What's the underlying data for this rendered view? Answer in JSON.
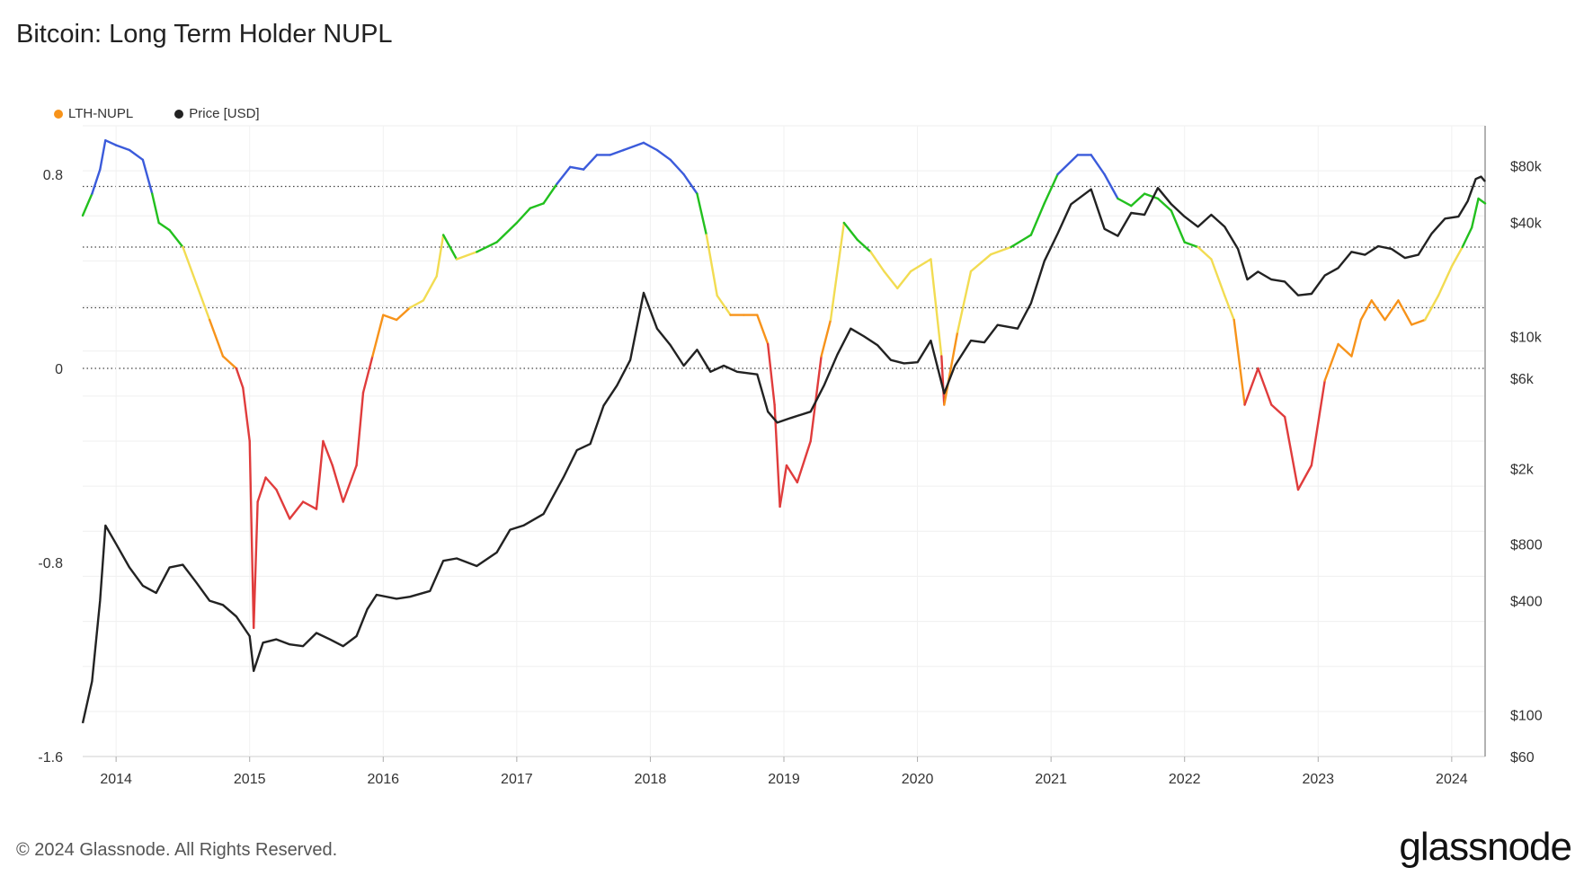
{
  "title": "Bitcoin: Long Term Holder NUPL",
  "footer": "© 2024 Glassnode. All Rights Reserved.",
  "logo_text": "glassnode",
  "legend": [
    {
      "label": "LTH-NUPL",
      "color": "#f7931a"
    },
    {
      "label": "Price [USD]",
      "color": "#222222"
    }
  ],
  "chart_data": {
    "type": "line",
    "x_ticks": [
      "2014",
      "2015",
      "2016",
      "2017",
      "2018",
      "2019",
      "2020",
      "2021",
      "2022",
      "2023",
      "2024"
    ],
    "x_range": [
      2013.75,
      2024.25
    ],
    "y_left": {
      "ticks": [
        "0.8",
        "0",
        "-0.8",
        "-1.6"
      ],
      "tick_values": [
        0.8,
        0,
        -0.8,
        -1.6
      ],
      "range": [
        -1.6,
        1.0
      ]
    },
    "y_right": {
      "ticks": [
        "$80k",
        "$40k",
        "$10k",
        "$6k",
        "$2k",
        "$800",
        "$400",
        "$100",
        "$60"
      ],
      "tick_values": [
        80000,
        40000,
        10000,
        6000,
        2000,
        800,
        400,
        100,
        60
      ],
      "scale": "log",
      "range": [
        60,
        130000
      ]
    },
    "threshold_lines": [
      0.75,
      0.5,
      0.25,
      0
    ],
    "zone_colors": {
      "capitulation": "#e03c3c",
      "hope_fear": "#f7931a",
      "optimism_anxiety": "#f2dc52",
      "belief_denial": "#22c01e",
      "euphoria_greed": "#3b5bdb"
    },
    "series": [
      {
        "name": "LTH-NUPL",
        "points": [
          [
            2013.75,
            0.63
          ],
          [
            2013.82,
            0.72
          ],
          [
            2013.88,
            0.82
          ],
          [
            2013.92,
            0.94
          ],
          [
            2014.0,
            0.92
          ],
          [
            2014.1,
            0.9
          ],
          [
            2014.2,
            0.86
          ],
          [
            2014.27,
            0.72
          ],
          [
            2014.32,
            0.6
          ],
          [
            2014.4,
            0.57
          ],
          [
            2014.5,
            0.5
          ],
          [
            2014.6,
            0.35
          ],
          [
            2014.7,
            0.2
          ],
          [
            2014.8,
            0.05
          ],
          [
            2014.9,
            0.0
          ],
          [
            2014.95,
            -0.08
          ],
          [
            2015.0,
            -0.3
          ],
          [
            2015.03,
            -1.07
          ],
          [
            2015.06,
            -0.55
          ],
          [
            2015.12,
            -0.45
          ],
          [
            2015.2,
            -0.5
          ],
          [
            2015.3,
            -0.62
          ],
          [
            2015.4,
            -0.55
          ],
          [
            2015.5,
            -0.58
          ],
          [
            2015.55,
            -0.3
          ],
          [
            2015.62,
            -0.4
          ],
          [
            2015.7,
            -0.55
          ],
          [
            2015.8,
            -0.4
          ],
          [
            2015.85,
            -0.1
          ],
          [
            2015.92,
            0.05
          ],
          [
            2016.0,
            0.22
          ],
          [
            2016.1,
            0.2
          ],
          [
            2016.2,
            0.25
          ],
          [
            2016.3,
            0.28
          ],
          [
            2016.4,
            0.38
          ],
          [
            2016.45,
            0.55
          ],
          [
            2016.55,
            0.45
          ],
          [
            2016.7,
            0.48
          ],
          [
            2016.85,
            0.52
          ],
          [
            2017.0,
            0.6
          ],
          [
            2017.1,
            0.66
          ],
          [
            2017.2,
            0.68
          ],
          [
            2017.3,
            0.76
          ],
          [
            2017.4,
            0.83
          ],
          [
            2017.5,
            0.82
          ],
          [
            2017.6,
            0.88
          ],
          [
            2017.7,
            0.88
          ],
          [
            2017.8,
            0.9
          ],
          [
            2017.95,
            0.93
          ],
          [
            2018.05,
            0.9
          ],
          [
            2018.15,
            0.86
          ],
          [
            2018.25,
            0.8
          ],
          [
            2018.35,
            0.72
          ],
          [
            2018.42,
            0.55
          ],
          [
            2018.5,
            0.3
          ],
          [
            2018.6,
            0.22
          ],
          [
            2018.7,
            0.22
          ],
          [
            2018.8,
            0.22
          ],
          [
            2018.88,
            0.1
          ],
          [
            2018.93,
            -0.15
          ],
          [
            2018.97,
            -0.57
          ],
          [
            2019.02,
            -0.4
          ],
          [
            2019.1,
            -0.47
          ],
          [
            2019.2,
            -0.3
          ],
          [
            2019.28,
            0.05
          ],
          [
            2019.35,
            0.2
          ],
          [
            2019.45,
            0.6
          ],
          [
            2019.55,
            0.53
          ],
          [
            2019.65,
            0.48
          ],
          [
            2019.75,
            0.4
          ],
          [
            2019.85,
            0.33
          ],
          [
            2019.95,
            0.4
          ],
          [
            2020.1,
            0.45
          ],
          [
            2020.18,
            0.05
          ],
          [
            2020.2,
            -0.15
          ],
          [
            2020.3,
            0.15
          ],
          [
            2020.4,
            0.4
          ],
          [
            2020.55,
            0.47
          ],
          [
            2020.7,
            0.5
          ],
          [
            2020.85,
            0.55
          ],
          [
            2020.95,
            0.68
          ],
          [
            2021.05,
            0.8
          ],
          [
            2021.2,
            0.88
          ],
          [
            2021.3,
            0.88
          ],
          [
            2021.4,
            0.8
          ],
          [
            2021.5,
            0.7
          ],
          [
            2021.6,
            0.67
          ],
          [
            2021.7,
            0.72
          ],
          [
            2021.8,
            0.7
          ],
          [
            2021.9,
            0.65
          ],
          [
            2022.0,
            0.52
          ],
          [
            2022.1,
            0.5
          ],
          [
            2022.2,
            0.45
          ],
          [
            2022.3,
            0.3
          ],
          [
            2022.37,
            0.2
          ],
          [
            2022.45,
            -0.15
          ],
          [
            2022.55,
            0.0
          ],
          [
            2022.65,
            -0.15
          ],
          [
            2022.75,
            -0.2
          ],
          [
            2022.85,
            -0.5
          ],
          [
            2022.95,
            -0.4
          ],
          [
            2023.05,
            -0.05
          ],
          [
            2023.15,
            0.1
          ],
          [
            2023.25,
            0.05
          ],
          [
            2023.32,
            0.2
          ],
          [
            2023.4,
            0.28
          ],
          [
            2023.5,
            0.2
          ],
          [
            2023.6,
            0.28
          ],
          [
            2023.7,
            0.18
          ],
          [
            2023.8,
            0.2
          ],
          [
            2023.9,
            0.3
          ],
          [
            2024.0,
            0.42
          ],
          [
            2024.08,
            0.5
          ],
          [
            2024.15,
            0.58
          ],
          [
            2024.2,
            0.7
          ],
          [
            2024.25,
            0.68
          ]
        ]
      },
      {
        "name": "Price [USD]",
        "color": "#222222",
        "points": [
          [
            2013.75,
            90
          ],
          [
            2013.82,
            150
          ],
          [
            2013.88,
            400
          ],
          [
            2013.92,
            1000
          ],
          [
            2014.0,
            800
          ],
          [
            2014.1,
            600
          ],
          [
            2014.2,
            480
          ],
          [
            2014.3,
            440
          ],
          [
            2014.4,
            600
          ],
          [
            2014.5,
            620
          ],
          [
            2014.6,
            500
          ],
          [
            2014.7,
            400
          ],
          [
            2014.8,
            380
          ],
          [
            2014.9,
            330
          ],
          [
            2015.0,
            260
          ],
          [
            2015.03,
            170
          ],
          [
            2015.1,
            240
          ],
          [
            2015.2,
            250
          ],
          [
            2015.3,
            235
          ],
          [
            2015.4,
            230
          ],
          [
            2015.5,
            270
          ],
          [
            2015.6,
            250
          ],
          [
            2015.7,
            230
          ],
          [
            2015.8,
            260
          ],
          [
            2015.88,
            360
          ],
          [
            2015.95,
            430
          ],
          [
            2016.1,
            410
          ],
          [
            2016.2,
            420
          ],
          [
            2016.35,
            450
          ],
          [
            2016.45,
            650
          ],
          [
            2016.55,
            670
          ],
          [
            2016.7,
            610
          ],
          [
            2016.85,
            720
          ],
          [
            2016.95,
            950
          ],
          [
            2017.05,
            1000
          ],
          [
            2017.2,
            1150
          ],
          [
            2017.35,
            1800
          ],
          [
            2017.45,
            2500
          ],
          [
            2017.55,
            2700
          ],
          [
            2017.65,
            4300
          ],
          [
            2017.75,
            5500
          ],
          [
            2017.85,
            7500
          ],
          [
            2017.95,
            17000
          ],
          [
            2018.05,
            11000
          ],
          [
            2018.15,
            9000
          ],
          [
            2018.25,
            7000
          ],
          [
            2018.35,
            8500
          ],
          [
            2018.45,
            6500
          ],
          [
            2018.55,
            7000
          ],
          [
            2018.65,
            6500
          ],
          [
            2018.8,
            6300
          ],
          [
            2018.88,
            4000
          ],
          [
            2018.95,
            3500
          ],
          [
            2019.05,
            3700
          ],
          [
            2019.2,
            4000
          ],
          [
            2019.3,
            5500
          ],
          [
            2019.4,
            8000
          ],
          [
            2019.5,
            11000
          ],
          [
            2019.6,
            10000
          ],
          [
            2019.7,
            9000
          ],
          [
            2019.8,
            7500
          ],
          [
            2019.9,
            7200
          ],
          [
            2020.0,
            7300
          ],
          [
            2020.1,
            9500
          ],
          [
            2020.2,
            5000
          ],
          [
            2020.28,
            7000
          ],
          [
            2020.4,
            9500
          ],
          [
            2020.5,
            9300
          ],
          [
            2020.6,
            11500
          ],
          [
            2020.75,
            11000
          ],
          [
            2020.85,
            15000
          ],
          [
            2020.95,
            25000
          ],
          [
            2021.05,
            35000
          ],
          [
            2021.15,
            50000
          ],
          [
            2021.3,
            60000
          ],
          [
            2021.4,
            37000
          ],
          [
            2021.5,
            34000
          ],
          [
            2021.6,
            45000
          ],
          [
            2021.7,
            44000
          ],
          [
            2021.8,
            61000
          ],
          [
            2021.9,
            50000
          ],
          [
            2022.0,
            43000
          ],
          [
            2022.1,
            38000
          ],
          [
            2022.2,
            44000
          ],
          [
            2022.3,
            38000
          ],
          [
            2022.4,
            29000
          ],
          [
            2022.47,
            20000
          ],
          [
            2022.55,
            22000
          ],
          [
            2022.65,
            20000
          ],
          [
            2022.75,
            19500
          ],
          [
            2022.85,
            16500
          ],
          [
            2022.95,
            16800
          ],
          [
            2023.05,
            21000
          ],
          [
            2023.15,
            23000
          ],
          [
            2023.25,
            28000
          ],
          [
            2023.35,
            27000
          ],
          [
            2023.45,
            30000
          ],
          [
            2023.55,
            29000
          ],
          [
            2023.65,
            26000
          ],
          [
            2023.75,
            27000
          ],
          [
            2023.85,
            35000
          ],
          [
            2023.95,
            42000
          ],
          [
            2024.05,
            43000
          ],
          [
            2024.12,
            52000
          ],
          [
            2024.18,
            68000
          ],
          [
            2024.22,
            70000
          ],
          [
            2024.25,
            66000
          ]
        ]
      }
    ]
  }
}
